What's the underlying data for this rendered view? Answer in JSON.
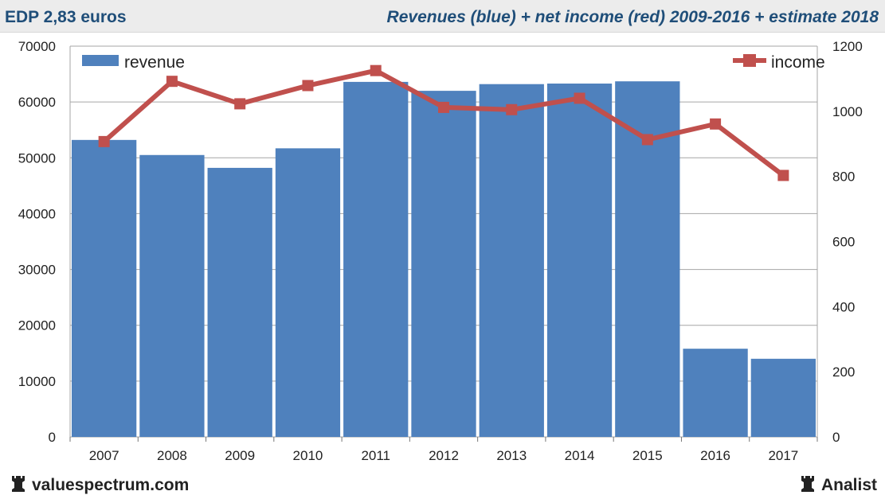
{
  "header": {
    "left_title": "EDP 2,83 euros",
    "right_title": "Revenues (blue) + net income (red) 2009-2016 + estimate 2018"
  },
  "footer": {
    "left_brand": "valuespectrum.com",
    "right_brand": "Analist"
  },
  "colors": {
    "revenue": "#4f81bd",
    "income": "#c0504d",
    "title_text": "#1f4e79",
    "grid": "#a6a6a6"
  },
  "chart_data": {
    "type": "bar",
    "categories": [
      "2007",
      "2008",
      "2009",
      "2010",
      "2011",
      "2012",
      "2013",
      "2014",
      "2015",
      "2016",
      "2017"
    ],
    "series": [
      {
        "name": "revenue",
        "type": "bar",
        "axis": "left",
        "values": [
          53200,
          50500,
          48200,
          51700,
          63600,
          62000,
          63200,
          63300,
          63700,
          15800,
          14000
        ]
      },
      {
        "name": "income",
        "type": "line",
        "axis": "right",
        "values": [
          907,
          1092,
          1023,
          1079,
          1125,
          1012,
          1005,
          1040,
          913,
          961,
          803
        ]
      }
    ],
    "y_left": {
      "min": 0,
      "max": 70000,
      "ticks": [
        "0",
        "10000",
        "20000",
        "30000",
        "40000",
        "50000",
        "60000",
        "70000"
      ]
    },
    "y_right": {
      "min": 0,
      "max": 1200,
      "ticks": [
        "0",
        "200",
        "400",
        "600",
        "800",
        "1000",
        "1200"
      ]
    },
    "legend": {
      "revenue_label": "revenue",
      "income_label": "income"
    },
    "grid": true
  }
}
